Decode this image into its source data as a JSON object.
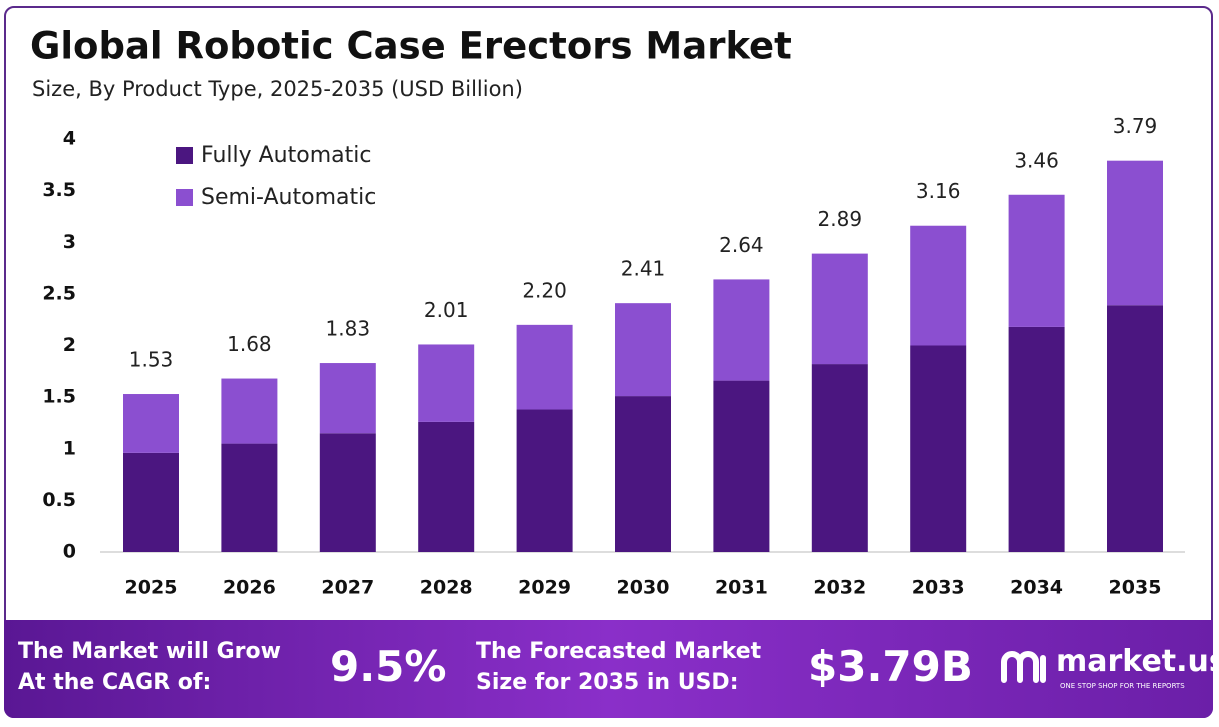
{
  "chart_data": {
    "type": "stacked_bar",
    "title": "Global Robotic Case Erectors Market",
    "subtitle": "Size, By Product Type, 2025-2035 (USD Billion)",
    "categories": [
      "2025",
      "2026",
      "2027",
      "2028",
      "2029",
      "2030",
      "2031",
      "2032",
      "2033",
      "2034",
      "2035"
    ],
    "series": [
      {
        "name": "Fully Automatic",
        "color": "#4b1680",
        "values": [
          0.96,
          1.05,
          1.15,
          1.26,
          1.38,
          1.51,
          1.66,
          1.82,
          2.0,
          2.18,
          2.39
        ]
      },
      {
        "name": "Semi-Automatic",
        "color": "#8b4fd0",
        "values": [
          0.57,
          0.63,
          0.68,
          0.75,
          0.82,
          0.9,
          0.98,
          1.07,
          1.16,
          1.28,
          1.4
        ]
      }
    ],
    "totals": [
      1.53,
      1.68,
      1.83,
      2.01,
      2.2,
      2.41,
      2.64,
      2.89,
      3.16,
      3.46,
      3.79
    ],
    "totals_labels": [
      "1.53",
      "1.68",
      "1.83",
      "2.01",
      "2.20",
      "2.41",
      "2.64",
      "2.89",
      "3.16",
      "3.46",
      "3.79"
    ],
    "ylim": [
      0,
      4
    ],
    "yticks": [
      0,
      0.5,
      1,
      1.5,
      2,
      2.5,
      3,
      3.5,
      4
    ],
    "grid": false,
    "legend": "top-left"
  },
  "footer": {
    "cagr_text": "The Market will Grow At the CAGR of:",
    "cagr_value": "9.5%",
    "forecast_text": "The Forecasted Market Size for 2035 in USD:",
    "forecast_value": "$3.79B",
    "brand": "market.us",
    "tagline": "ONE STOP SHOP FOR THE REPORTS"
  }
}
